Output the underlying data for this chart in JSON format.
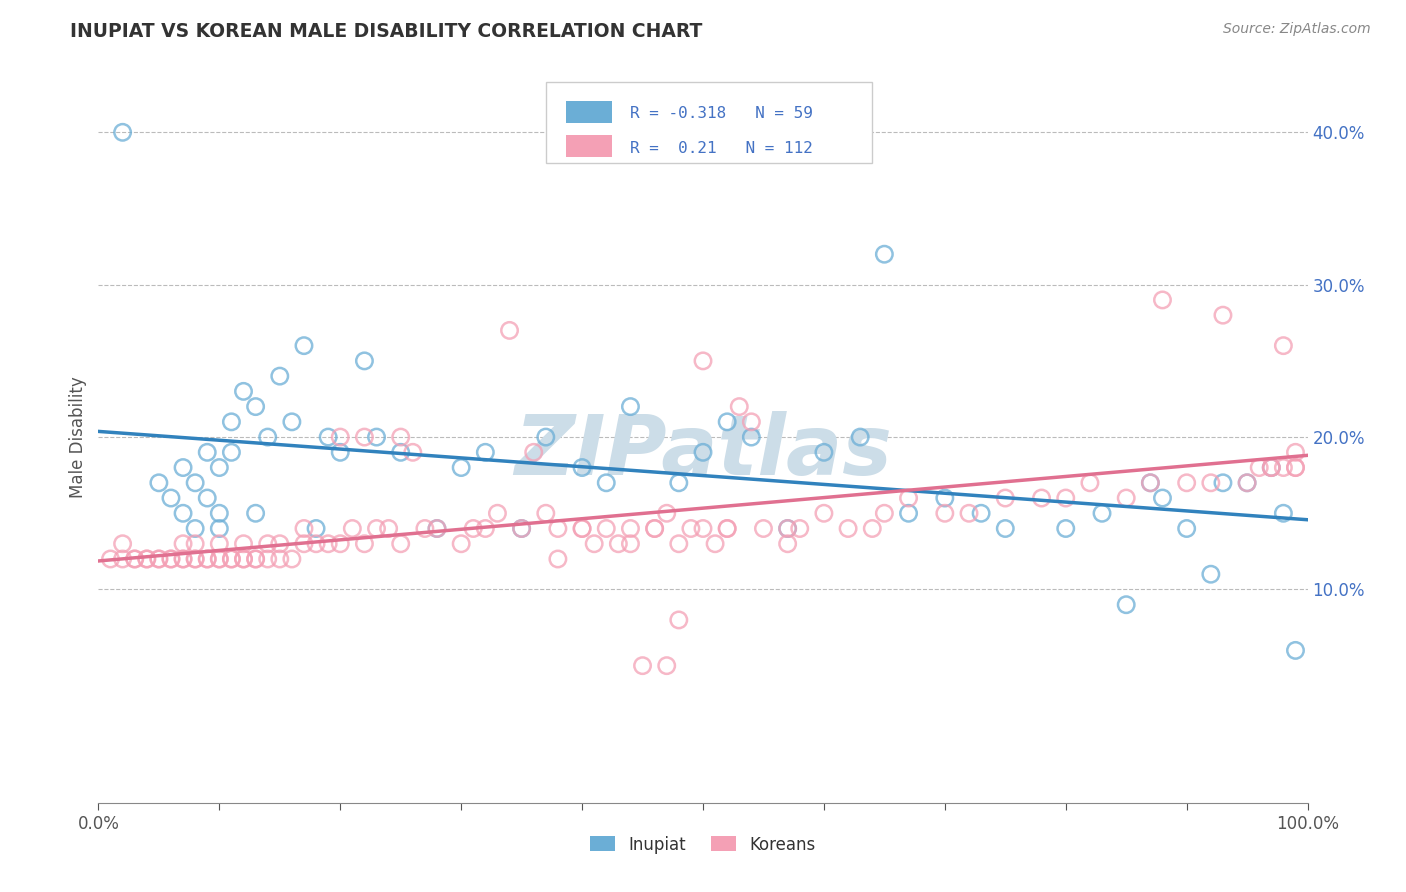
{
  "title": "INUPIAT VS KOREAN MALE DISABILITY CORRELATION CHART",
  "source": "Source: ZipAtlas.com",
  "ylabel": "Male Disability",
  "xlim": [
    0.0,
    1.0
  ],
  "ylim": [
    -0.04,
    0.44
  ],
  "x_ticks": [
    0.0,
    0.1,
    0.2,
    0.3,
    0.4,
    0.5,
    0.6,
    0.7,
    0.8,
    0.9,
    1.0
  ],
  "y_ticks": [
    0.1,
    0.2,
    0.3,
    0.4
  ],
  "y_tick_labels": [
    "10.0%",
    "20.0%",
    "30.0%",
    "40.0%"
  ],
  "inupiat_color": "#6baed6",
  "korean_color": "#f4a0b5",
  "inupiat_line_color": "#3182bd",
  "korean_line_color": "#e07090",
  "inupiat_R": -0.318,
  "inupiat_N": 59,
  "korean_R": 0.21,
  "korean_N": 112,
  "legend_label_1": "Inupiat",
  "legend_label_2": "Koreans",
  "watermark": "ZIPatlas",
  "watermark_color": "#ccdde8",
  "inupiat_x": [
    0.02,
    0.05,
    0.06,
    0.07,
    0.07,
    0.08,
    0.08,
    0.09,
    0.09,
    0.1,
    0.1,
    0.1,
    0.11,
    0.11,
    0.12,
    0.13,
    0.13,
    0.14,
    0.15,
    0.16,
    0.17,
    0.18,
    0.19,
    0.2,
    0.22,
    0.23,
    0.25,
    0.28,
    0.3,
    0.32,
    0.35,
    0.37,
    0.4,
    0.42,
    0.44,
    0.48,
    0.5,
    0.52,
    0.54,
    0.57,
    0.6,
    0.63,
    0.65,
    0.67,
    0.7,
    0.73,
    0.75,
    0.8,
    0.83,
    0.85,
    0.87,
    0.88,
    0.9,
    0.92,
    0.93,
    0.95,
    0.97,
    0.98,
    0.99
  ],
  "inupiat_y": [
    0.4,
    0.17,
    0.16,
    0.15,
    0.18,
    0.14,
    0.17,
    0.19,
    0.16,
    0.15,
    0.18,
    0.14,
    0.21,
    0.19,
    0.23,
    0.15,
    0.22,
    0.2,
    0.24,
    0.21,
    0.26,
    0.14,
    0.2,
    0.19,
    0.25,
    0.2,
    0.19,
    0.14,
    0.18,
    0.19,
    0.14,
    0.2,
    0.18,
    0.17,
    0.22,
    0.17,
    0.19,
    0.21,
    0.2,
    0.14,
    0.19,
    0.2,
    0.32,
    0.15,
    0.16,
    0.15,
    0.14,
    0.14,
    0.15,
    0.09,
    0.17,
    0.16,
    0.14,
    0.11,
    0.17,
    0.17,
    0.18,
    0.15,
    0.06
  ],
  "korean_x": [
    0.01,
    0.02,
    0.02,
    0.03,
    0.03,
    0.04,
    0.04,
    0.05,
    0.05,
    0.06,
    0.06,
    0.07,
    0.07,
    0.07,
    0.08,
    0.08,
    0.08,
    0.09,
    0.09,
    0.1,
    0.1,
    0.1,
    0.11,
    0.11,
    0.12,
    0.12,
    0.12,
    0.13,
    0.13,
    0.14,
    0.14,
    0.15,
    0.15,
    0.16,
    0.17,
    0.17,
    0.18,
    0.19,
    0.2,
    0.2,
    0.21,
    0.22,
    0.22,
    0.23,
    0.24,
    0.25,
    0.25,
    0.26,
    0.27,
    0.28,
    0.3,
    0.31,
    0.32,
    0.33,
    0.35,
    0.36,
    0.37,
    0.38,
    0.4,
    0.42,
    0.44,
    0.46,
    0.47,
    0.48,
    0.5,
    0.52,
    0.53,
    0.54,
    0.55,
    0.57,
    0.58,
    0.6,
    0.62,
    0.64,
    0.65,
    0.67,
    0.7,
    0.72,
    0.75,
    0.78,
    0.8,
    0.82,
    0.85,
    0.87,
    0.88,
    0.9,
    0.92,
    0.93,
    0.95,
    0.96,
    0.97,
    0.97,
    0.98,
    0.98,
    0.99,
    0.99,
    0.99,
    0.5,
    0.52,
    0.45,
    0.34,
    0.47,
    0.48,
    0.57,
    0.51,
    0.38,
    0.4,
    0.43,
    0.46,
    0.49,
    0.41,
    0.44
  ],
  "korean_y": [
    0.12,
    0.12,
    0.13,
    0.12,
    0.12,
    0.12,
    0.12,
    0.12,
    0.12,
    0.12,
    0.12,
    0.12,
    0.12,
    0.13,
    0.12,
    0.12,
    0.13,
    0.12,
    0.12,
    0.12,
    0.12,
    0.13,
    0.12,
    0.12,
    0.12,
    0.12,
    0.13,
    0.12,
    0.12,
    0.12,
    0.13,
    0.12,
    0.13,
    0.12,
    0.13,
    0.14,
    0.13,
    0.13,
    0.13,
    0.2,
    0.14,
    0.13,
    0.2,
    0.14,
    0.14,
    0.13,
    0.2,
    0.19,
    0.14,
    0.14,
    0.13,
    0.14,
    0.14,
    0.15,
    0.14,
    0.19,
    0.15,
    0.14,
    0.14,
    0.14,
    0.14,
    0.14,
    0.15,
    0.13,
    0.14,
    0.14,
    0.22,
    0.21,
    0.14,
    0.14,
    0.14,
    0.15,
    0.14,
    0.14,
    0.15,
    0.16,
    0.15,
    0.15,
    0.16,
    0.16,
    0.16,
    0.17,
    0.16,
    0.17,
    0.29,
    0.17,
    0.17,
    0.28,
    0.17,
    0.18,
    0.18,
    0.18,
    0.18,
    0.26,
    0.18,
    0.18,
    0.19,
    0.25,
    0.14,
    0.05,
    0.27,
    0.05,
    0.08,
    0.13,
    0.13,
    0.12,
    0.14,
    0.13,
    0.14,
    0.14,
    0.13,
    0.13
  ]
}
